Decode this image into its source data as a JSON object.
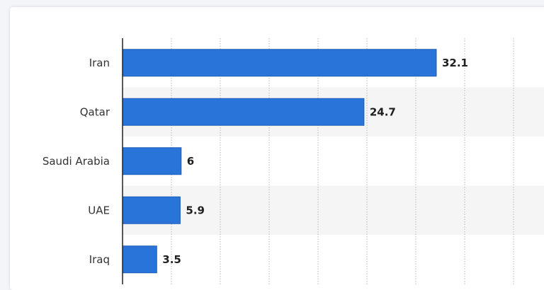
{
  "chart_data": {
    "type": "bar",
    "orientation": "horizontal",
    "categories": [
      "Iran",
      "Qatar",
      "Saudi Arabia",
      "UAE",
      "Iraq"
    ],
    "values": [
      32.1,
      24.7,
      6,
      5.9,
      3.5
    ],
    "value_labels": [
      "32.1",
      "24.7",
      "6",
      "5.9",
      "3.5"
    ],
    "xlim": [
      0,
      40
    ],
    "grid": true,
    "bar_color": "#2874d8",
    "alt_row_color": "#f5f5f5"
  }
}
